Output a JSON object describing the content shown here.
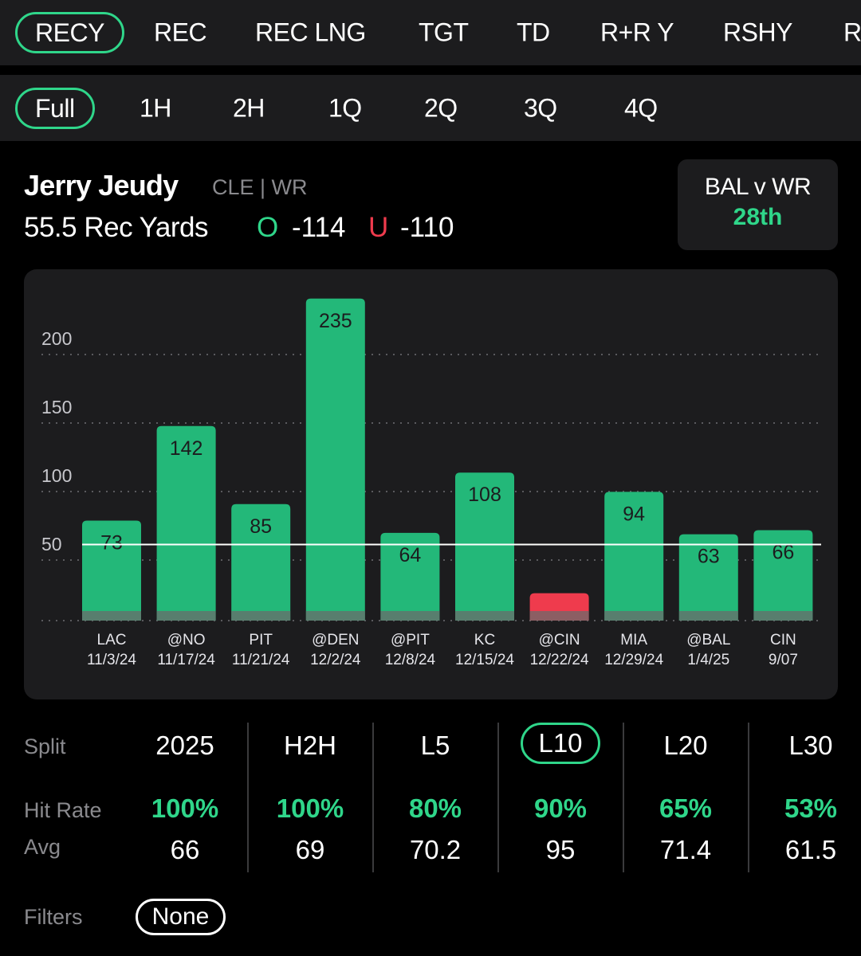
{
  "stat_tabs": [
    "RECY",
    "REC",
    "REC LNG",
    "TGT",
    "TD",
    "R+R Y",
    "RSHY",
    "R"
  ],
  "period_tabs": [
    "Full",
    "1H",
    "2H",
    "1Q",
    "2Q",
    "3Q",
    "4Q"
  ],
  "player": {
    "name": "Jerry Jeudy",
    "meta": "CLE | WR",
    "line": "55.5 Rec Yards",
    "over_label": "O",
    "over_odds": "-114",
    "under_label": "U",
    "under_odds": "-110"
  },
  "matchup": {
    "title": "BAL v WR",
    "rank": "28th"
  },
  "colors": {
    "accent": "#2fd68a",
    "bar_over": "#23b879",
    "bar_under": "#ef3b4d",
    "card": "#1c1c1e",
    "muted": "#8a8a8e"
  },
  "chart_data": {
    "type": "bar",
    "categories": [
      "LAC 11/3/24",
      "@NO 11/17/24",
      "PIT 11/21/24",
      "@DEN 12/2/24",
      "@PIT 12/8/24",
      "KC 12/15/24",
      "@CIN 12/22/24",
      "MIA 12/29/24",
      "@BAL 1/4/25",
      "CIN 9/07"
    ],
    "opponents": [
      "LAC",
      "@NO",
      "PIT",
      "@DEN",
      "@PIT",
      "KC",
      "@CIN",
      "MIA",
      "@BAL",
      "CIN"
    ],
    "dates": [
      "11/3/24",
      "11/17/24",
      "11/21/24",
      "12/2/24",
      "12/8/24",
      "12/15/24",
      "12/22/24",
      "12/29/24",
      "1/4/25",
      "9/07"
    ],
    "values": [
      73,
      142,
      85,
      235,
      64,
      108,
      20,
      94,
      63,
      66
    ],
    "value_labels": [
      "73",
      "142",
      "85",
      "235",
      "64",
      "108",
      "",
      "94",
      "63",
      "66"
    ],
    "line": 55.5,
    "yticks": [
      50,
      100,
      150,
      200
    ],
    "ylim": [
      0,
      235
    ],
    "grid": true
  },
  "splits": {
    "split_label": "Split",
    "hit_label": "Hit Rate",
    "avg_label": "Avg",
    "columns": [
      {
        "name": "2025",
        "hit": "100%",
        "avg": "66"
      },
      {
        "name": "H2H",
        "hit": "100%",
        "avg": "69"
      },
      {
        "name": "L5",
        "hit": "80%",
        "avg": "70.2"
      },
      {
        "name": "L10",
        "hit": "90%",
        "avg": "95"
      },
      {
        "name": "L20",
        "hit": "65%",
        "avg": "71.4"
      },
      {
        "name": "L30",
        "hit": "53%",
        "avg": "61.5"
      }
    ],
    "active": "L10"
  },
  "filters": {
    "label": "Filters",
    "value": "None"
  }
}
